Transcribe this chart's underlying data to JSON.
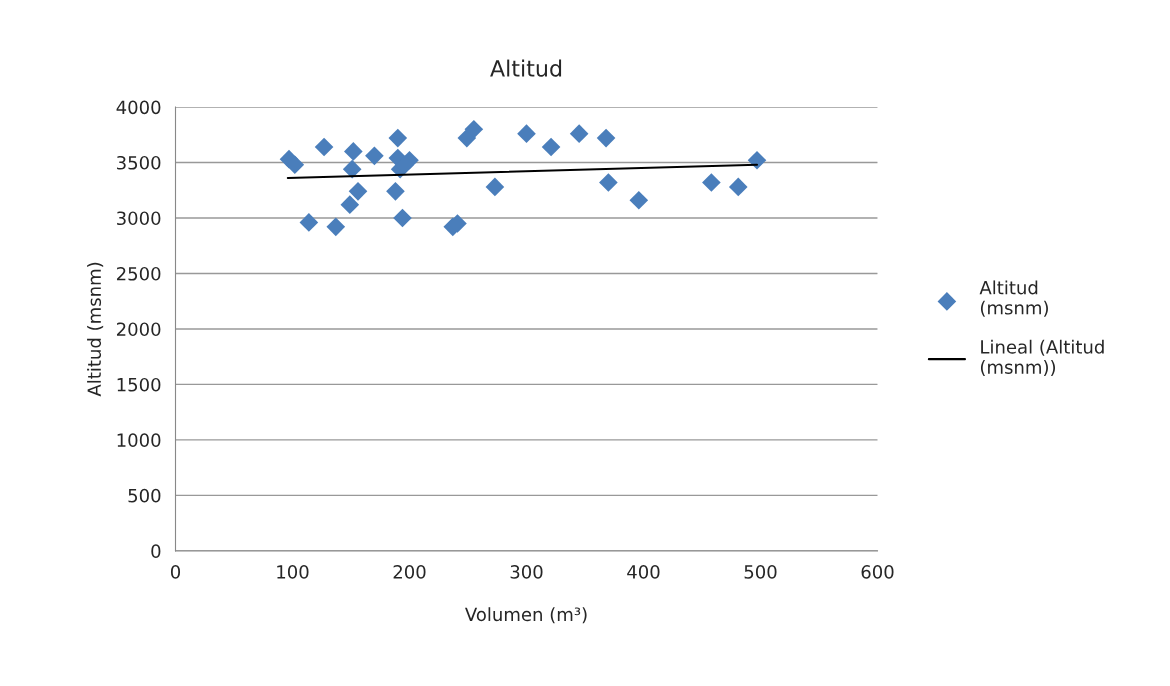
{
  "chart_data": {
    "type": "scatter",
    "title": "Altitud",
    "xlabel": "Volumen (m³)",
    "ylabel": "Altitud (msnm)",
    "xlim": [
      0,
      600
    ],
    "xticks": [
      0,
      100,
      200,
      300,
      400,
      500,
      600
    ],
    "ylim": [
      0,
      4000
    ],
    "yticks": [
      0,
      500,
      1000,
      1500,
      2000,
      2500,
      3000,
      3500,
      4000
    ],
    "grid": "y",
    "legend": "right",
    "marker": "diamond",
    "series": [
      {
        "name": "Altitud (msnm)",
        "color": "#4a7ebb",
        "x": [
          97,
          102,
          127,
          152,
          151,
          170,
          190,
          190,
          192,
          200,
          196,
          114,
          137,
          149,
          156,
          188,
          194,
          237,
          241,
          249,
          255,
          273,
          300,
          321,
          345,
          368,
          370,
          396,
          458,
          481,
          497
        ],
        "values": [
          3530,
          3480,
          3640,
          3600,
          3440,
          3560,
          3720,
          3540,
          3440,
          3520,
          3480,
          2960,
          2920,
          3120,
          3240,
          3240,
          3000,
          2920,
          2950,
          3720,
          3800,
          3280,
          3760,
          3640,
          3760,
          3720,
          3320,
          3160,
          3320,
          3280,
          3520
        ]
      },
      {
        "name": "Lineal (Altitud (msnm))",
        "type": "line",
        "color": "#000000",
        "marker": "none",
        "x": [
          96,
          497
        ],
        "values": [
          3360,
          3480
        ]
      }
    ]
  }
}
